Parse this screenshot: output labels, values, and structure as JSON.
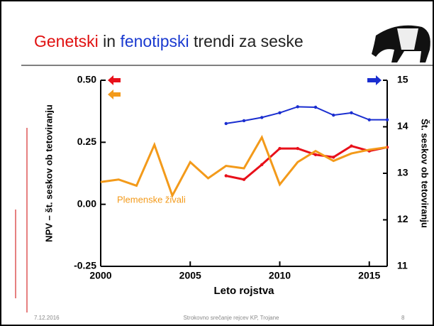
{
  "slide": {
    "title_parts": [
      "Genetski",
      "in",
      "fenotipski",
      "trendi za seske"
    ],
    "footer": {
      "date": "7.12.2016",
      "event": "Strokovno srečanje rejcev KP, Trojane",
      "page": "8"
    }
  },
  "chart_data": {
    "type": "line",
    "xlabel": "Leto rojstva",
    "ylabel": "NPV – št. seskov ob tetoviranju",
    "y2label": "Št. seskov ob tetoviranju",
    "x": [
      2000,
      2001,
      2002,
      2003,
      2004,
      2005,
      2006,
      2007,
      2008,
      2009,
      2010,
      2011,
      2012,
      2013,
      2014,
      2015,
      2016
    ],
    "xlim": [
      2000,
      2016
    ],
    "xticks": [
      2000,
      2005,
      2010,
      2015
    ],
    "ylim": [
      -0.25,
      0.5
    ],
    "yticks": [
      {
        "value": -0.25,
        "label": "-0.25"
      },
      {
        "value": 0,
        "label": "0.00"
      },
      {
        "value": 0.25,
        "label": "0.25"
      },
      {
        "value": 0.5,
        "label": "0.50"
      }
    ],
    "y2lim": [
      11,
      15
    ],
    "y2ticks": [
      11,
      12,
      13,
      14,
      15
    ],
    "series": [
      {
        "color": "#e8101a",
        "values": [
          null,
          null,
          null,
          null,
          null,
          null,
          null,
          0.115,
          0.1,
          0.16,
          0.225,
          0.225,
          0.2,
          0.19,
          0.235,
          0.215,
          0.23
        ]
      },
      {
        "color": "#1a2ed0",
        "axis": "y2",
        "values": [
          null,
          null,
          null,
          null,
          null,
          null,
          null,
          14.07,
          14.13,
          14.2,
          14.3,
          14.43,
          14.42,
          14.25,
          14.3,
          14.15,
          14.15
        ]
      },
      {
        "name": "Plemenske živali",
        "color": "#f39a1a",
        "values": [
          0.09,
          0.1,
          0.075,
          0.24,
          0.035,
          0.17,
          0.105,
          0.155,
          0.145,
          0.27,
          0.08,
          0.17,
          0.215,
          0.175,
          0.205,
          0.22,
          0.23
        ]
      }
    ]
  }
}
